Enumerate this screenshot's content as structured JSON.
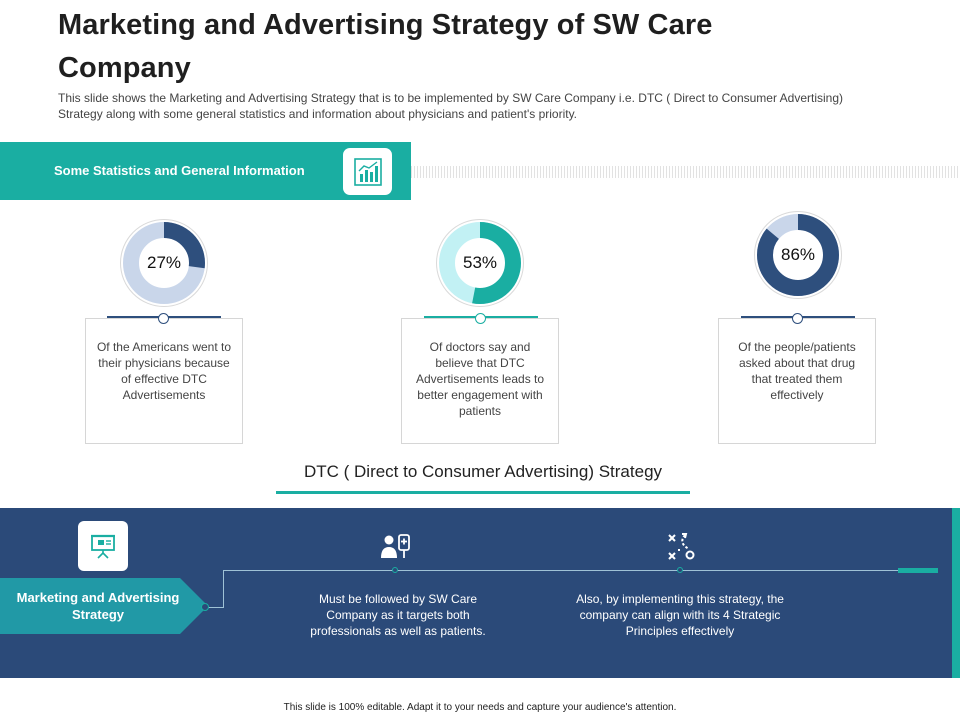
{
  "slide": {
    "title": "Marketing and Advertising Strategy of SW Care Company",
    "subtitle": "This slide shows the Marketing and Advertising Strategy that is to be implemented  by SW Care Company i.e. DTC  ( Direct to Consumer Advertising)  Strategy along with some general  statistics and information  about physicians and patient's priority.",
    "footer": "This slide is 100% editable.  Adapt it to your needs and capture your audience's attention."
  },
  "stats_banner": {
    "label": "Some Statistics and General Information",
    "icon": "bar-chart-icon"
  },
  "stats": [
    {
      "percent": 27,
      "label": "27%",
      "text": "Of the Americans went to their physicians because of effective  DTC Advertisements",
      "fill_color": "#2e4f7d",
      "track_color": "#c9d6ea"
    },
    {
      "percent": 53,
      "label": "53%",
      "text": "Of doctors say and believe  that DTC Advertisements  leads to better engagement with patients",
      "fill_color": "#1aaea2",
      "track_color": "#c2f1f4"
    },
    {
      "percent": 86,
      "label": "86%",
      "text": "Of the people/patients asked about that drug that treated them effectively",
      "fill_color": "#2e4f7d",
      "track_color": "#c9d6ea"
    }
  ],
  "strategy": {
    "heading": "DTC ( Direct to Consumer Advertising) Strategy",
    "label": "Marketing and Advertising Strategy",
    "label_icon": "presentation-board-icon",
    "points": [
      {
        "icon": "doctor-patient-icon",
        "text": "Must be followed  by SW Care Company as it targets  both professionals  as well as patients."
      },
      {
        "icon": "strategy-play-icon",
        "text": "Also, by implementing this strategy, the company can align with its 4 Strategic Principles effectively"
      }
    ]
  },
  "colors": {
    "teal": "#1aaea2",
    "navy": "#2b4a79",
    "arrow_teal": "#2199a6"
  }
}
